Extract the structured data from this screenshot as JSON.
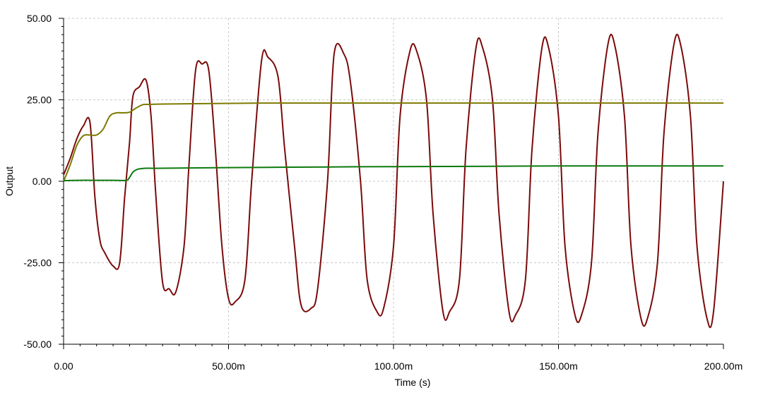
{
  "chart_data": {
    "type": "line",
    "xlabel": "Time (s)",
    "ylabel": "Output",
    "xlim": [
      0,
      0.2
    ],
    "ylim": [
      -50,
      50
    ],
    "grid": true,
    "x_ticks": [
      {
        "value": 0,
        "label": "0.00"
      },
      {
        "value": 0.05,
        "label": "50.00m"
      },
      {
        "value": 0.1,
        "label": "100.00m"
      },
      {
        "value": 0.15,
        "label": "150.00m"
      },
      {
        "value": 0.2,
        "label": "200.00m"
      }
    ],
    "y_ticks": [
      {
        "value": 50,
        "label": "50.00"
      },
      {
        "value": 25,
        "label": "25.00"
      },
      {
        "value": 0,
        "label": "0.00"
      },
      {
        "value": -25,
        "label": "-25.00"
      },
      {
        "value": -50,
        "label": "-50.00"
      }
    ],
    "series": [
      {
        "color": "#7a0a0a",
        "x": [
          0,
          0.002,
          0.004,
          0.006,
          0.008,
          0.0095,
          0.011,
          0.0125,
          0.015,
          0.017,
          0.0185,
          0.02,
          0.021,
          0.023,
          0.025,
          0.0265,
          0.028,
          0.03,
          0.032,
          0.034,
          0.0365,
          0.038,
          0.04,
          0.042,
          0.044,
          0.046,
          0.048,
          0.05,
          0.052,
          0.055,
          0.057,
          0.06,
          0.062,
          0.065,
          0.067,
          0.07,
          0.072,
          0.075,
          0.077,
          0.08,
          0.082,
          0.085,
          0.087,
          0.09,
          0.092,
          0.095,
          0.097,
          0.1,
          0.102,
          0.105,
          0.107,
          0.11,
          0.112,
          0.115,
          0.117,
          0.12,
          0.122,
          0.125,
          0.127,
          0.13,
          0.132,
          0.135,
          0.137,
          0.14,
          0.142,
          0.145,
          0.147,
          0.15,
          0.152,
          0.155,
          0.157,
          0.16,
          0.162,
          0.165,
          0.167,
          0.17,
          0.172,
          0.175,
          0.177,
          0.18,
          0.182,
          0.185,
          0.187,
          0.19,
          0.192,
          0.195,
          0.197,
          0.2
        ],
        "y": [
          2,
          7,
          13,
          17,
          18,
          -5,
          -18,
          -22,
          -26,
          -25,
          -5,
          12,
          26,
          29,
          31,
          20,
          -5,
          -31,
          -33,
          -34,
          -20,
          5,
          34,
          36,
          34,
          10,
          -20,
          -36,
          -37,
          -30,
          0,
          37,
          38,
          32,
          10,
          -20,
          -38,
          -39,
          -33,
          0,
          39,
          39,
          30,
          0,
          -30,
          -40,
          -39,
          -20,
          20,
          40,
          40,
          25,
          -10,
          -40,
          -40,
          -30,
          10,
          41,
          41,
          25,
          -10,
          -40,
          -41,
          -30,
          10,
          41,
          41,
          20,
          -20,
          -41,
          -41,
          -25,
          15,
          42,
          42,
          20,
          -20,
          -42,
          -42,
          -25,
          15,
          42,
          42,
          20,
          -20,
          -42,
          -40,
          0
        ]
      },
      {
        "color": "#7d7a00",
        "x": [
          0,
          0.002,
          0.004,
          0.006,
          0.008,
          0.01,
          0.012,
          0.014,
          0.016,
          0.018,
          0.02,
          0.022,
          0.024,
          0.026,
          0.03,
          0.04,
          0.06,
          0.1,
          0.15,
          0.2
        ],
        "y": [
          0,
          5,
          11,
          14,
          14.2,
          14.2,
          16,
          20,
          21,
          21,
          21.2,
          22.5,
          23.5,
          23.6,
          23.7,
          23.8,
          24,
          24,
          24,
          24
        ]
      },
      {
        "color": "#0d7a0d",
        "x": [
          0,
          0.005,
          0.01,
          0.015,
          0.019,
          0.02,
          0.021,
          0.022,
          0.023,
          0.025,
          0.03,
          0.05,
          0.08,
          0.1,
          0.13,
          0.15,
          0.2
        ],
        "y": [
          0.2,
          0.3,
          0.3,
          0.3,
          0.3,
          1.2,
          2.8,
          3.5,
          3.8,
          4,
          4,
          4.2,
          4.4,
          4.5,
          4.6,
          4.7,
          4.7
        ]
      }
    ]
  }
}
